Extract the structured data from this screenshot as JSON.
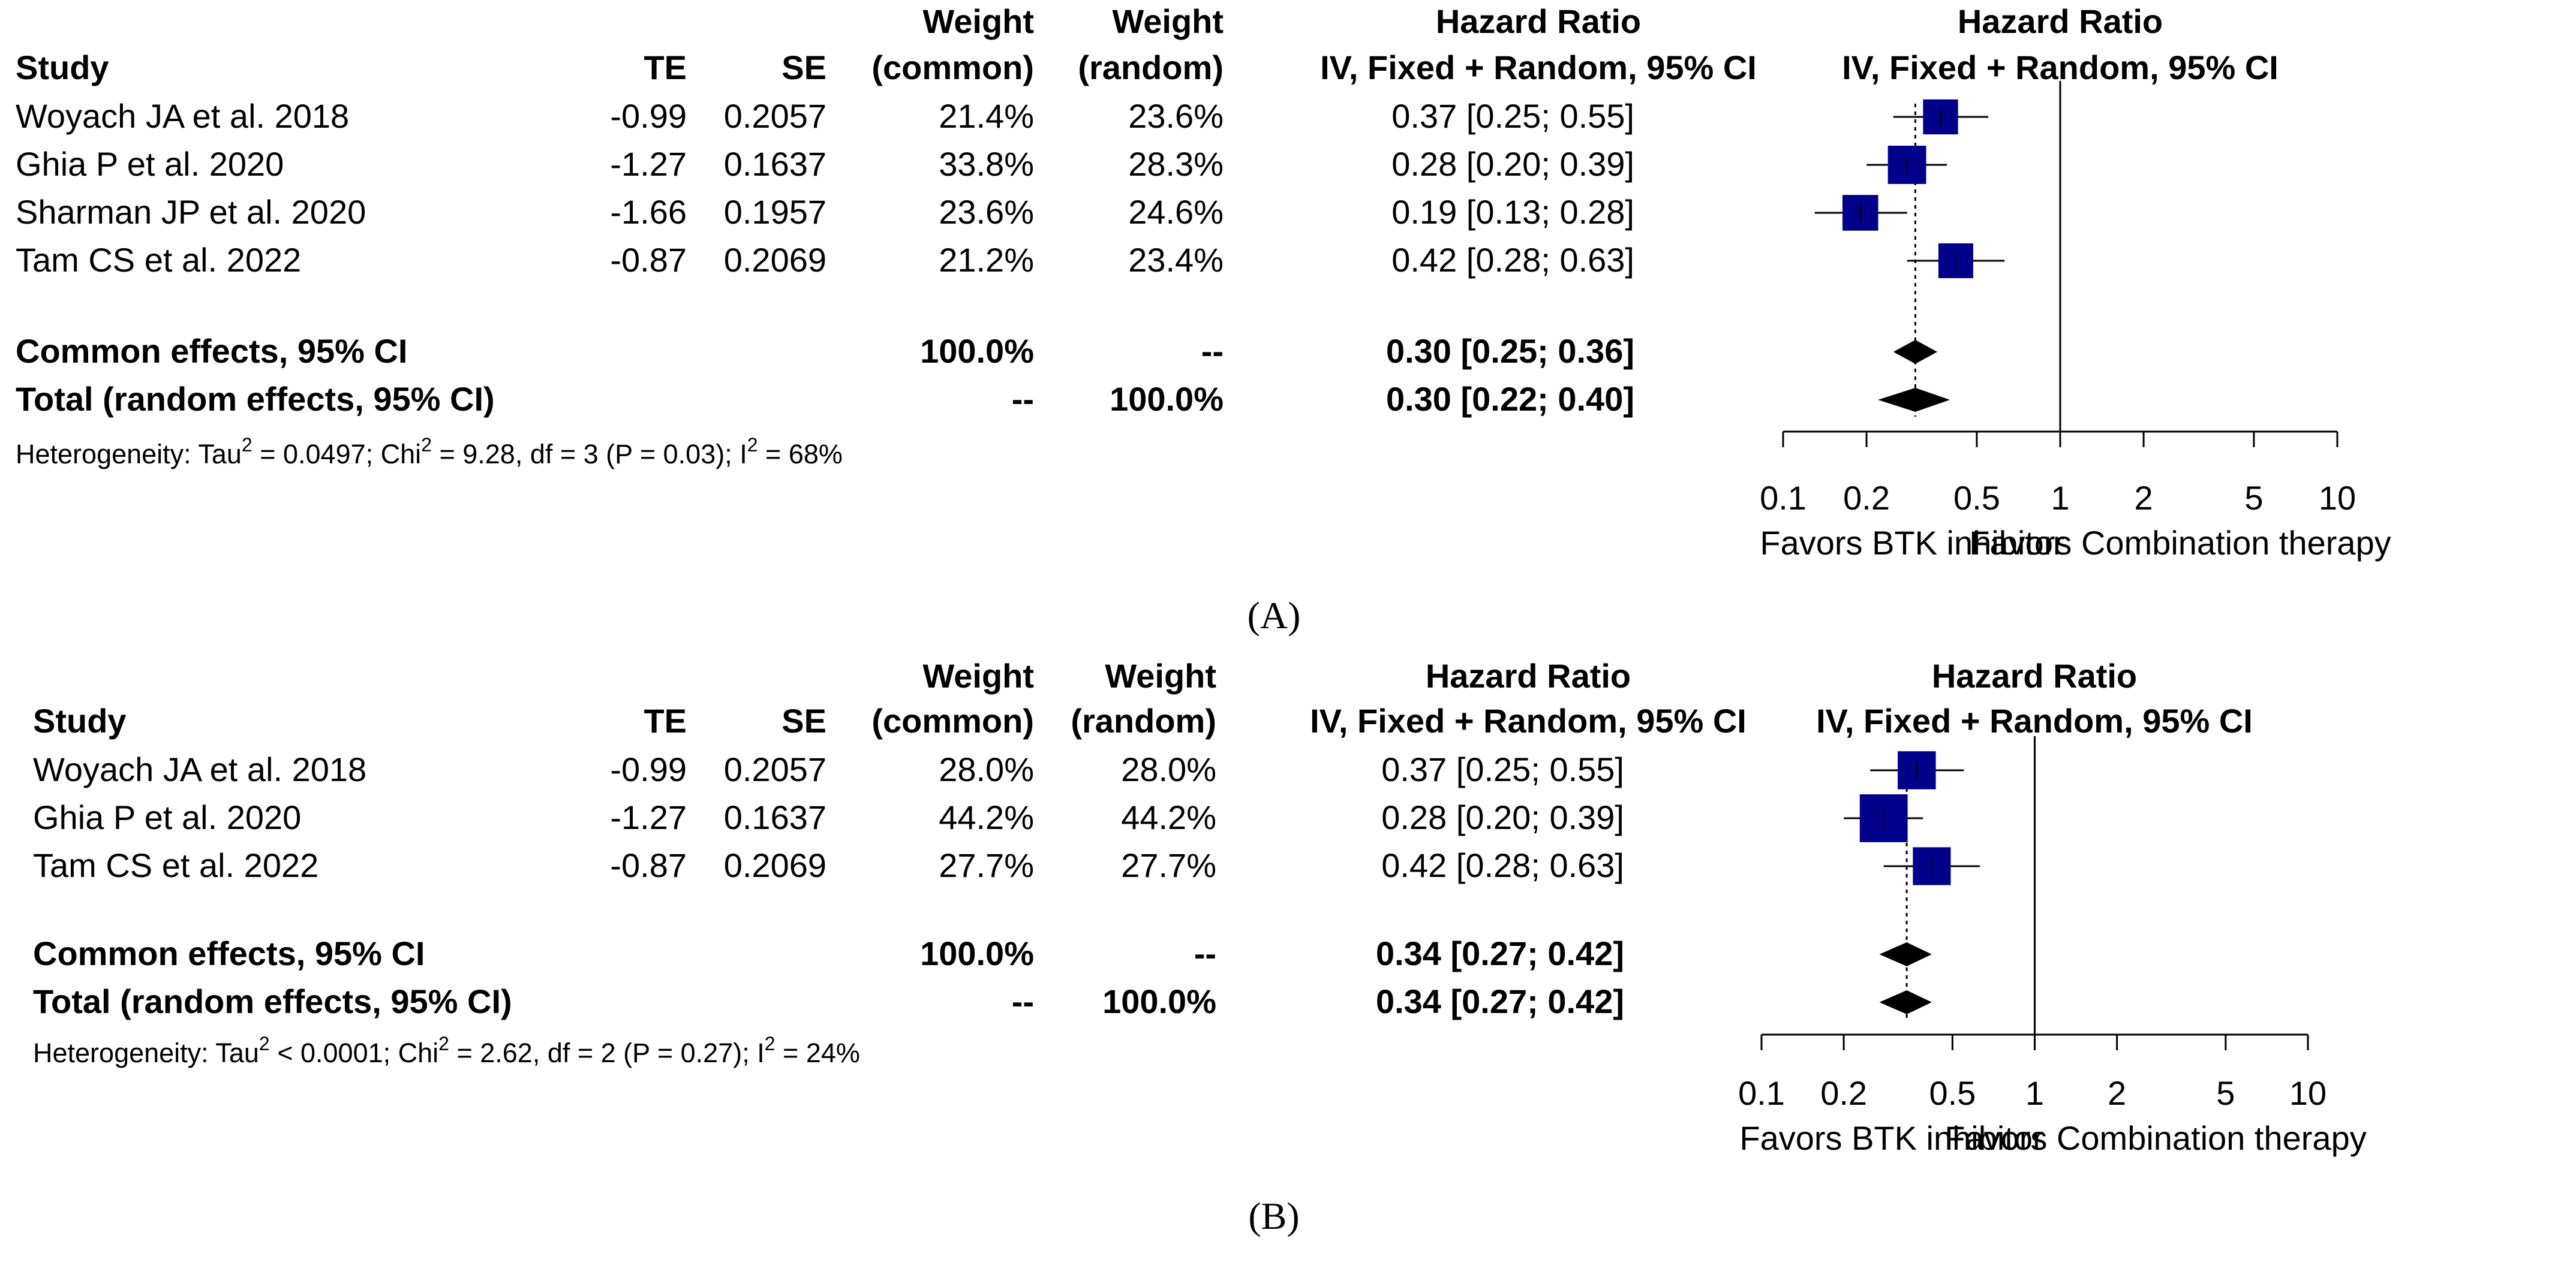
{
  "chart_data": [
    {
      "type": "forest",
      "panel_label": "(A)",
      "x_scale": "log",
      "xlim": [
        0.1,
        10
      ],
      "reference_line": 1,
      "header": {
        "study": "Study",
        "te": "TE",
        "se": "SE",
        "weight_common_1": "Weight",
        "weight_common_2": "(common)",
        "weight_random_1": "Weight",
        "weight_random_2": "(random)",
        "hr_1": "Hazard Ratio",
        "hr_2": "IV, Fixed + Random, 95% CI",
        "plot_1": "Hazard Ratio",
        "plot_2": "IV, Fixed + Random, 95% CI"
      },
      "studies": [
        {
          "study": "Woyach JA et al. 2018",
          "te": "-0.99",
          "se": "0.2057",
          "w_common": "21.4%",
          "w_random": "23.6%",
          "ci_text": "0.37 [0.25; 0.55]",
          "hr": 0.37,
          "lo": 0.25,
          "hi": 0.55
        },
        {
          "study": "Ghia P et al. 2020",
          "te": "-1.27",
          "se": "0.1637",
          "w_common": "33.8%",
          "w_random": "28.3%",
          "ci_text": "0.28 [0.20; 0.39]",
          "hr": 0.28,
          "lo": 0.2,
          "hi": 0.39
        },
        {
          "study": "Sharman JP et al. 2020",
          "te": "-1.66",
          "se": "0.1957",
          "w_common": "23.6%",
          "w_random": "24.6%",
          "ci_text": "0.19 [0.13; 0.28]",
          "hr": 0.19,
          "lo": 0.13,
          "hi": 0.28
        },
        {
          "study": "Tam CS et al. 2022",
          "te": "-0.87",
          "se": "0.2069",
          "w_common": "21.2%",
          "w_random": "23.4%",
          "ci_text": "0.42 [0.28; 0.63]",
          "hr": 0.42,
          "lo": 0.28,
          "hi": 0.63
        }
      ],
      "summary": [
        {
          "label": "Common effects, 95% CI",
          "w_common": "100.0%",
          "w_random": "--",
          "ci_text": "0.30 [0.25; 0.36]",
          "hr": 0.3,
          "lo": 0.25,
          "hi": 0.36
        },
        {
          "label": "Total (random effects, 95% CI)",
          "w_common": "--",
          "w_random": "100.0%",
          "ci_text": "0.30 [0.22; 0.40]",
          "hr": 0.3,
          "lo": 0.22,
          "hi": 0.4
        }
      ],
      "heterogeneity": {
        "p1": "Heterogeneity: Tau",
        "p2": " = 0.0497; Chi",
        "p3": " = 9.28, df = 3 (P = 0.03); I",
        "p4": " = 68%",
        "sup": "2"
      },
      "ticks": [
        {
          "v": 0.1,
          "label": "0.1"
        },
        {
          "v": 0.2,
          "label": "0.2"
        },
        {
          "v": 0.5,
          "label": "0.5"
        },
        {
          "v": 1,
          "label": "1"
        },
        {
          "v": 2,
          "label": "2"
        },
        {
          "v": 5,
          "label": "5"
        },
        {
          "v": 10,
          "label": "10"
        }
      ],
      "favors_left": "Favors BTK inhibitor",
      "favors_right": "Favors Combination therapy"
    },
    {
      "type": "forest",
      "panel_label": "(B)",
      "x_scale": "log",
      "xlim": [
        0.1,
        10
      ],
      "reference_line": 1,
      "header": {
        "study": "Study",
        "te": "TE",
        "se": "SE",
        "weight_common_1": "Weight",
        "weight_common_2": "(common)",
        "weight_random_1": "Weight",
        "weight_random_2": "(random)",
        "hr_1": "Hazard Ratio",
        "hr_2": "IV, Fixed + Random, 95% CI",
        "plot_1": "Hazard Ratio",
        "plot_2": "IV, Fixed + Random, 95% CI"
      },
      "studies": [
        {
          "study": "Woyach JA et al. 2018",
          "te": "-0.99",
          "se": "0.2057",
          "w_common": "28.0%",
          "w_random": "28.0%",
          "ci_text": "0.37 [0.25; 0.55]",
          "hr": 0.37,
          "lo": 0.25,
          "hi": 0.55
        },
        {
          "study": "Ghia P et al. 2020",
          "te": "-1.27",
          "se": "0.1637",
          "w_common": "44.2%",
          "w_random": "44.2%",
          "ci_text": "0.28 [0.20; 0.39]",
          "hr": 0.28,
          "lo": 0.2,
          "hi": 0.39
        },
        {
          "study": "Tam CS et al. 2022",
          "te": "-0.87",
          "se": "0.2069",
          "w_common": "27.7%",
          "w_random": "27.7%",
          "ci_text": "0.42 [0.28; 0.63]",
          "hr": 0.42,
          "lo": 0.28,
          "hi": 0.63
        }
      ],
      "summary": [
        {
          "label": "Common effects, 95% CI",
          "w_common": "100.0%",
          "w_random": "--",
          "ci_text": "0.34 [0.27; 0.42]",
          "hr": 0.34,
          "lo": 0.27,
          "hi": 0.42
        },
        {
          "label": "Total (random effects, 95% CI)",
          "w_common": "--",
          "w_random": "100.0%",
          "ci_text": "0.34 [0.27; 0.42]",
          "hr": 0.34,
          "lo": 0.27,
          "hi": 0.42
        }
      ],
      "heterogeneity": {
        "p1": "Heterogeneity: Tau",
        "p2": " < 0.0001; Chi",
        "p3": " = 2.62, df = 2 (P = 0.27); I",
        "p4": " = 24%",
        "sup": "2"
      },
      "ticks": [
        {
          "v": 0.1,
          "label": "0.1"
        },
        {
          "v": 0.2,
          "label": "0.2"
        },
        {
          "v": 0.5,
          "label": "0.5"
        },
        {
          "v": 1,
          "label": "1"
        },
        {
          "v": 2,
          "label": "2"
        },
        {
          "v": 5,
          "label": "5"
        },
        {
          "v": 10,
          "label": "10"
        }
      ],
      "favors_left": "Favors BTK inhibitor",
      "favors_right": "Favors Combination therapy"
    }
  ]
}
